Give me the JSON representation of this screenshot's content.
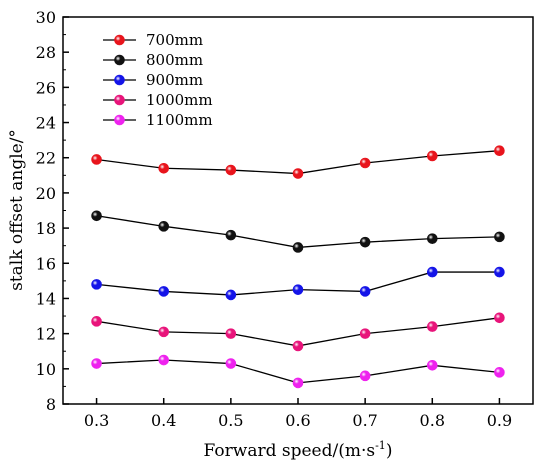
{
  "chart_data": {
    "type": "line",
    "xlabel_main": "Forward speed/(m·s",
    "xlabel_sup": "-1",
    "xlabel_end": ")",
    "ylabel": "stalk offset angle/°",
    "xlim": [
      0.25,
      0.95
    ],
    "ylim": [
      8,
      30
    ],
    "xticks": [
      "0.3",
      "0.4",
      "0.5",
      "0.6",
      "0.7",
      "0.8",
      "0.9"
    ],
    "yticks": [
      "8",
      "10",
      "12",
      "14",
      "16",
      "18",
      "20",
      "22",
      "24",
      "26",
      "28",
      "30"
    ],
    "x": [
      0.3,
      0.4,
      0.5,
      0.6,
      0.7,
      0.8,
      0.9
    ],
    "legend_position": "top-left",
    "series": [
      {
        "name": "700mm",
        "color": "#e8141c",
        "values": [
          21.9,
          21.4,
          21.3,
          21.1,
          21.7,
          22.1,
          22.4
        ]
      },
      {
        "name": "800mm",
        "color": "#111111",
        "values": [
          18.7,
          18.1,
          17.6,
          16.9,
          17.2,
          17.4,
          17.5
        ]
      },
      {
        "name": "900mm",
        "color": "#1414e8",
        "values": [
          14.8,
          14.4,
          14.2,
          14.5,
          14.4,
          15.5,
          15.5
        ]
      },
      {
        "name": "1000mm",
        "color": "#e8147a",
        "values": [
          12.7,
          12.1,
          12.0,
          11.3,
          12.0,
          12.4,
          12.9
        ]
      },
      {
        "name": "1100mm",
        "color": "#ee22ee",
        "values": [
          10.3,
          10.5,
          10.3,
          9.2,
          9.6,
          10.2,
          9.8
        ]
      }
    ]
  }
}
